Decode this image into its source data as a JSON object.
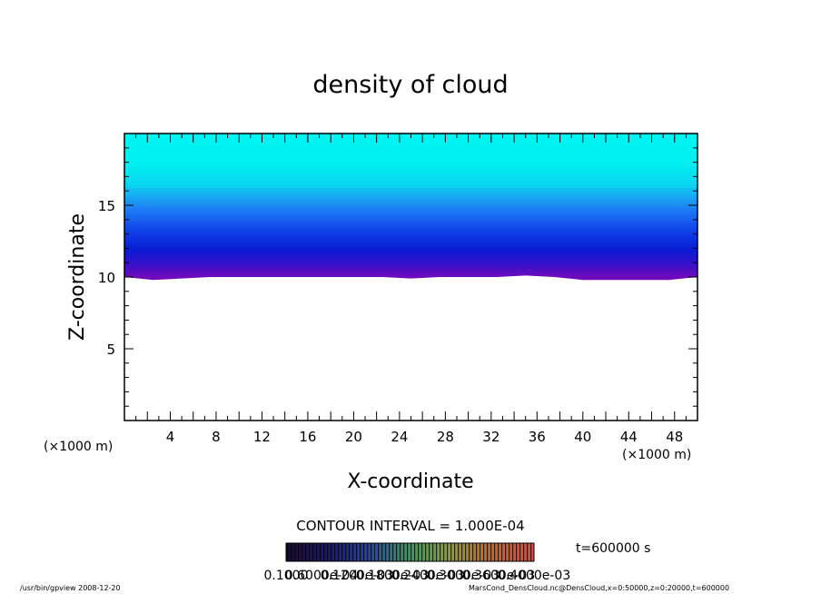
{
  "chart_data": {
    "type": "heatmap",
    "title": "density of cloud",
    "xlabel": "X-coordinate",
    "ylabel": "Z-coordinate",
    "x_unit": "(×1000 m)",
    "y_unit": "(×1000 m)",
    "xlim": [
      0,
      50
    ],
    "ylim": [
      0,
      20
    ],
    "x_ticks": [
      "4",
      "8",
      "12",
      "16",
      "20",
      "24",
      "28",
      "32",
      "36",
      "40",
      "44",
      "48"
    ],
    "y_ticks": [
      "5",
      "10",
      "15"
    ],
    "contour_interval": "CONTOUR INTERVAL = 1.000E-04",
    "time_label": "t=600000 s",
    "colorbar_labels": [
      "0.1000",
      "0.6000e-04",
      "0.1200e-03",
      "0.1800e-03",
      "0.2400e-03",
      "0.3000e-03",
      "0.3600e-03",
      "0.4000e-03"
    ],
    "cloud_base_z": [
      10.0,
      9.8,
      9.9,
      10.0,
      10.0,
      10.0,
      10.0,
      10.0,
      10.0,
      10.0,
      9.9,
      10.0,
      10.0,
      10.0,
      10.1,
      10.0,
      9.8,
      9.8,
      9.8,
      9.8,
      10.0
    ]
  },
  "footer": {
    "left": "/usr/bin/gpview   2008-12-20",
    "right": "MarsCond_DensCloud.nc@DensCloud,x=0:50000,z=0:20000,t=600000"
  },
  "colors": {
    "top": "#00f2f2",
    "mid": "#1f8ff5",
    "deep": "#0a1fd8",
    "base": "#7a0ab8",
    "colorbar_low": "#1a0a3a",
    "colorbar_high": "#e05040"
  }
}
